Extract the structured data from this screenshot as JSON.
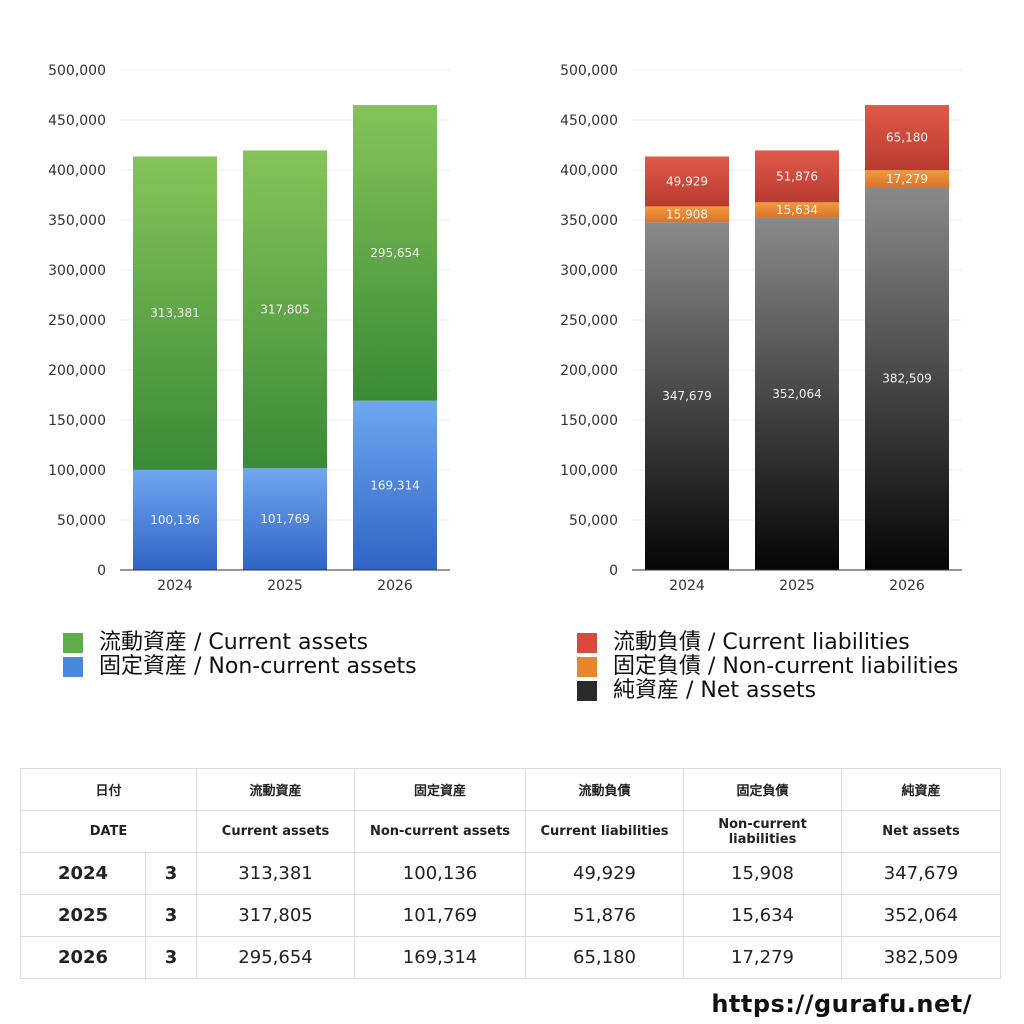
{
  "chart_data": [
    {
      "type": "bar",
      "stacked": true,
      "categories": [
        "2024",
        "2025",
        "2026"
      ],
      "series": [
        {
          "name": "固定資産 / Non-current assets",
          "values": [
            100136,
            101769,
            169314
          ],
          "labels": [
            "100,136",
            "101,769",
            "169,314"
          ],
          "color_top": "#6fa7f0",
          "color_bottom": "#2f64c4"
        },
        {
          "name": "流動資産 / Current assets",
          "values": [
            313381,
            317805,
            295654
          ],
          "labels": [
            "313,381",
            "317,805",
            "295,654"
          ],
          "color_top": "#86c45a",
          "color_bottom": "#3a8a36"
        }
      ],
      "ylim": [
        0,
        500000
      ],
      "yticks": [
        "0",
        "50,000",
        "100,000",
        "150,000",
        "200,000",
        "250,000",
        "300,000",
        "350,000",
        "400,000",
        "450,000",
        "500,000"
      ],
      "grid": true
    },
    {
      "type": "bar",
      "stacked": true,
      "categories": [
        "2024",
        "2025",
        "2026"
      ],
      "series": [
        {
          "name": "純資産 / Net assets",
          "values": [
            347679,
            352064,
            382509
          ],
          "labels": [
            "347,679",
            "352,064",
            "382,509"
          ],
          "color_top": "#8a8a8a",
          "color_bottom": "#050505"
        },
        {
          "name": "固定負債 / Non-current liabilities",
          "values": [
            15908,
            15634,
            17279
          ],
          "labels": [
            "15,908",
            "15,634",
            "17,279"
          ],
          "color_top": "#f09a3e",
          "color_bottom": "#d9732a"
        },
        {
          "name": "流動負債 / Current liabilities",
          "values": [
            49929,
            51876,
            65180
          ],
          "labels": [
            "49,929",
            "51,876",
            "65,180"
          ],
          "color_top": "#e05a4a",
          "color_bottom": "#b83a30"
        }
      ],
      "ylim": [
        0,
        500000
      ],
      "yticks": [
        "0",
        "50,000",
        "100,000",
        "150,000",
        "200,000",
        "250,000",
        "300,000",
        "350,000",
        "400,000",
        "450,000",
        "500,000"
      ],
      "grid": true
    }
  ],
  "legend_left": [
    {
      "label": "流動資産 / Current assets",
      "color": "#5fae4a"
    },
    {
      "label": "固定資産 / Non-current assets",
      "color": "#4a88e0"
    }
  ],
  "legend_right": [
    {
      "label": "流動負債 / Current liabilities",
      "color": "#d94a3c"
    },
    {
      "label": "固定負債 / Non-current liabilities",
      "color": "#e8862e"
    },
    {
      "label": "純資産 / Net assets",
      "color": "#2a2a2a"
    }
  ],
  "table": {
    "header_jp": [
      "日付",
      "流動資産",
      "固定資産",
      "流動負債",
      "固定負債",
      "純資産"
    ],
    "header_en": [
      "DATE",
      "Current assets",
      "Non-current assets",
      "Current liabilities",
      "Non-current liabilities",
      "Net assets"
    ],
    "rows": [
      [
        "2024",
        "3",
        "313,381",
        "100,136",
        "49,929",
        "15,908",
        "347,679"
      ],
      [
        "2025",
        "3",
        "317,805",
        "101,769",
        "51,876",
        "15,634",
        "352,064"
      ],
      [
        "2026",
        "3",
        "295,654",
        "169,314",
        "65,180",
        "17,279",
        "382,509"
      ]
    ]
  },
  "site_url": "https://gurafu.net/"
}
